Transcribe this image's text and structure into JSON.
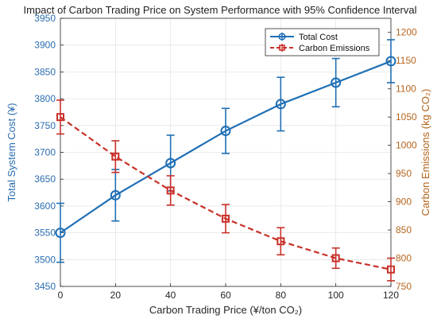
{
  "chart_data": {
    "type": "line",
    "title": "Impact of Carbon Trading Price on System Performance with 95% Confidence Interval",
    "xlabel": "Carbon Trading Price (¥/ton CO₂)",
    "ylabel_left": "Total System Cost (¥)",
    "ylabel_right": "Carbon Emissions (kg CO₂)",
    "x": [
      0,
      20,
      40,
      60,
      80,
      100,
      120
    ],
    "xlim": [
      0,
      120
    ],
    "xticks": [
      "0",
      "20",
      "40",
      "60",
      "80",
      "100",
      "120"
    ],
    "ylim_left": [
      3450,
      3950
    ],
    "yticks_left": [
      "3450",
      "3500",
      "3550",
      "3600",
      "3650",
      "3700",
      "3750",
      "3800",
      "3850",
      "3900",
      "3950"
    ],
    "ylim_right": [
      750,
      1225
    ],
    "yticks_right": [
      "750",
      "800",
      "850",
      "900",
      "950",
      "1000",
      "1050",
      "1100",
      "1150",
      "1200"
    ],
    "grid": true,
    "legend_position": "top-right",
    "series": [
      {
        "name": "Total Cost",
        "axis": "left",
        "color": "#1f6fb5",
        "line_style": "solid",
        "marker": "circle",
        "values": [
          3550,
          3620,
          3680,
          3740,
          3790,
          3830,
          3870
        ],
        "error": [
          55,
          48,
          52,
          42,
          50,
          45,
          40
        ]
      },
      {
        "name": "Carbon Emissions",
        "axis": "right",
        "color": "#c8312a",
        "line_style": "dashed",
        "marker": "square",
        "values": [
          1050,
          980,
          920,
          870,
          830,
          800,
          780
        ],
        "error": [
          30,
          28,
          26,
          25,
          24,
          18,
          20
        ]
      }
    ]
  }
}
